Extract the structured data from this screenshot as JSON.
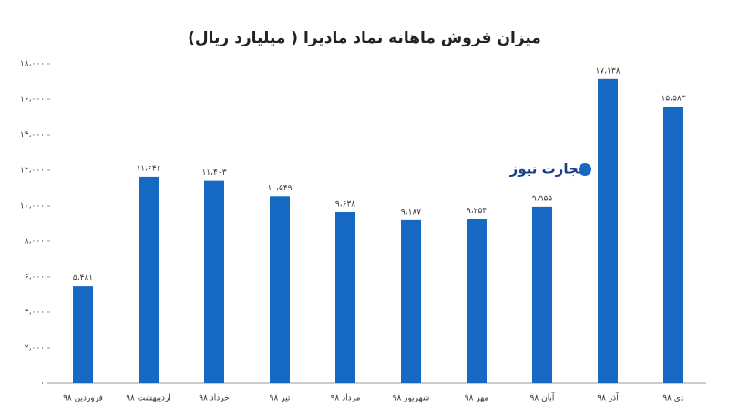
{
  "chart_data": {
    "type": "bar",
    "title": "میزان فروش ماهانه نماد مادیرا ( میلیارد ریال)",
    "watermark": "تجارت نیوز",
    "categories": [
      "فروردین ۹۸",
      "اردیبهشت ۹۸",
      "خرداد ۹۸",
      "تیر ۹۸",
      "مرداد ۹۸",
      "شهریور ۹۸",
      "مهر ۹۸",
      "آبان ۹۸",
      "آذر ۹۸",
      "دی ۹۸"
    ],
    "values": [
      5481,
      11646,
      11403,
      10549,
      9638,
      9187,
      9254,
      9955,
      17138,
      15583
    ],
    "value_labels": [
      "۵،۴۸۱",
      "۱۱،۶۴۶",
      "۱۱،۴۰۳",
      "۱۰،۵۴۹",
      "۹،۶۳۸",
      "۹،۱۸۷",
      "۹،۲۵۴",
      "۹،۹۵۵",
      "۱۷،۱۳۸",
      "۱۵،۵۸۳"
    ],
    "color": "#1569c2",
    "ylim": [
      0,
      18000
    ],
    "yticks": [
      {
        "value": 0,
        "label": "۰"
      },
      {
        "value": 2000,
        "label": "۲،۰۰۰"
      },
      {
        "value": 4000,
        "label": "۴،۰۰۰"
      },
      {
        "value": 6000,
        "label": "۶،۰۰۰"
      },
      {
        "value": 8000,
        "label": "۸،۰۰۰"
      },
      {
        "value": 10000,
        "label": "۱۰،۰۰۰"
      },
      {
        "value": 12000,
        "label": "۱۲،۰۰۰"
      },
      {
        "value": 14000,
        "label": "۱۴،۰۰۰"
      },
      {
        "value": 16000,
        "label": "۱۶،۰۰۰"
      },
      {
        "value": 18000,
        "label": "۱۸،۰۰۰"
      }
    ],
    "grid": false
  }
}
